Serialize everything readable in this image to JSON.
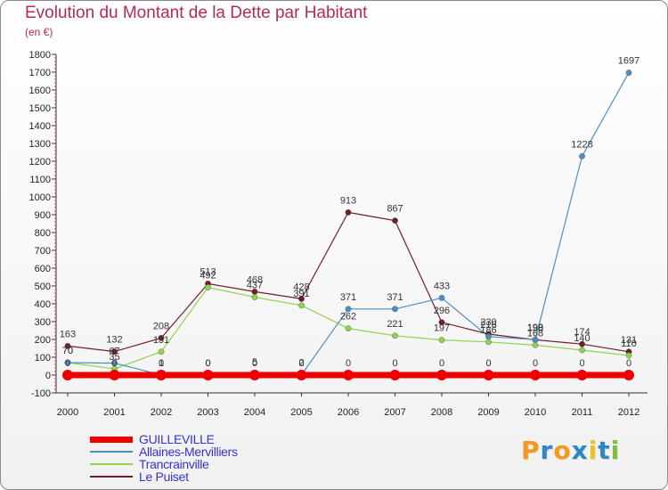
{
  "title": "Evolution du Montant de la Dette par Habitant",
  "subtitle": "(en €)",
  "logo": "Proxiti",
  "chart_data": {
    "type": "line",
    "title": "Evolution du Montant de la Dette par Habitant",
    "ylabel": "(en €)",
    "x": [
      2000,
      2001,
      2002,
      2003,
      2004,
      2005,
      2006,
      2007,
      2008,
      2009,
      2010,
      2011,
      2012
    ],
    "ylim": [
      -100,
      1800
    ],
    "yticks": [
      -100,
      0,
      100,
      200,
      300,
      400,
      500,
      600,
      700,
      800,
      900,
      1000,
      1100,
      1200,
      1300,
      1400,
      1500,
      1600,
      1700,
      1800
    ],
    "grid": false,
    "legend_position": "bottom-left",
    "series": [
      {
        "name": "GUILLEVILLE",
        "color": "#ee0000",
        "values": [
          0,
          0,
          0,
          0,
          0,
          0,
          0,
          0,
          0,
          0,
          0,
          0,
          0
        ]
      },
      {
        "name": "Allaines-Mervilliers",
        "color": "#4f8fc0",
        "values": [
          70,
          67,
          1,
          0,
          5,
          2,
          371,
          371,
          433,
          216,
          199,
          1228,
          1697
        ]
      },
      {
        "name": "Trancrainville",
        "color": "#8fd24f",
        "values": [
          70,
          35,
          131,
          492,
          437,
          391,
          262,
          221,
          197,
          186,
          168,
          140,
          110
        ]
      },
      {
        "name": "Le Puiset",
        "color": "#6e1f2a",
        "values": [
          163,
          132,
          208,
          513,
          468,
          428,
          913,
          867,
          296,
          230,
          198,
          174,
          131
        ]
      }
    ]
  }
}
